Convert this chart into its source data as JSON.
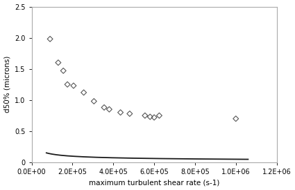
{
  "scatter_x": [
    90000,
    130000,
    155000,
    175000,
    205000,
    255000,
    305000,
    355000,
    380000,
    435000,
    480000,
    555000,
    580000,
    600000,
    625000,
    1000000
  ],
  "scatter_y": [
    1.98,
    1.6,
    1.47,
    1.25,
    1.23,
    1.12,
    0.98,
    0.88,
    0.85,
    0.8,
    0.78,
    0.75,
    0.73,
    0.72,
    0.75,
    0.7
  ],
  "curve_x_start": 72000,
  "curve_x_end": 1060000,
  "curve_A": 18.5,
  "curve_B": -0.43,
  "xlabel": "maximum turbulent shear rate (s-1)",
  "ylabel": "d50% (microns)",
  "xlim": [
    0,
    1200000.0
  ],
  "ylim": [
    0,
    2.5
  ],
  "xticks": [
    0,
    200000.0,
    400000.0,
    600000.0,
    800000.0,
    1000000.0,
    1200000.0
  ],
  "yticks": [
    0,
    0.5,
    1.0,
    1.5,
    2.0,
    2.5
  ],
  "background_color": "#ffffff",
  "line_color": "#1a1a1a",
  "marker_facecolor": "none",
  "marker_edge_color": "#555555",
  "marker_size": 16,
  "marker_lw": 0.8,
  "line_width": 1.3,
  "xlabel_fontsize": 7.5,
  "ylabel_fontsize": 7.5,
  "tick_labelsize": 7
}
